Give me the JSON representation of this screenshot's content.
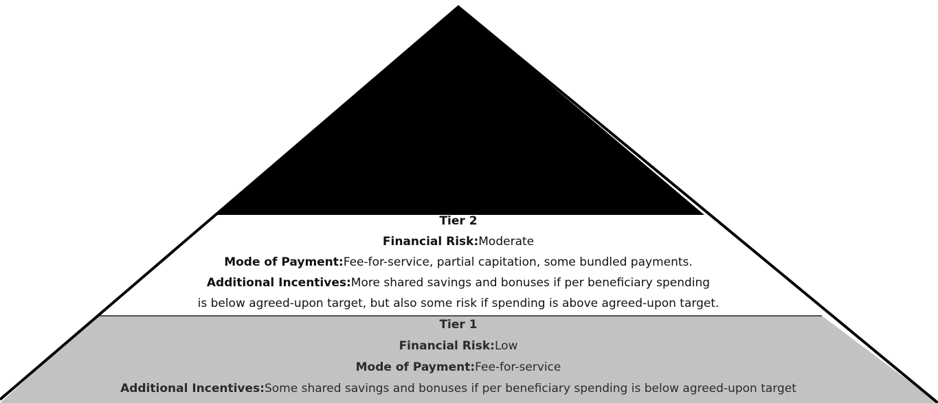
{
  "tiers": [
    {
      "title": "Tier 2",
      "rows": [
        {
          "label": "Financial Risk:",
          "text": "Moderate"
        },
        {
          "label": "Mode of Payment:",
          "text": "Fee-for-service, partial capitation, some bundled payments."
        },
        {
          "label": "Additional Incentives:",
          "text": "More shared savings and bonuses if per beneficiary spending"
        },
        {
          "text": "is below agreed-upon target, but also some risk if spending is above agreed-upon target."
        }
      ]
    },
    {
      "title": "Tier 1",
      "rows": [
        {
          "label": "Financial Risk:",
          "text": "Low"
        },
        {
          "label": "Mode of Payment:",
          "text": "Fee-for-service"
        },
        {
          "label": "Additional Incentives:",
          "text": "Some shared savings and bonuses if per beneficiary spending is below agreed-upon target"
        }
      ]
    }
  ]
}
